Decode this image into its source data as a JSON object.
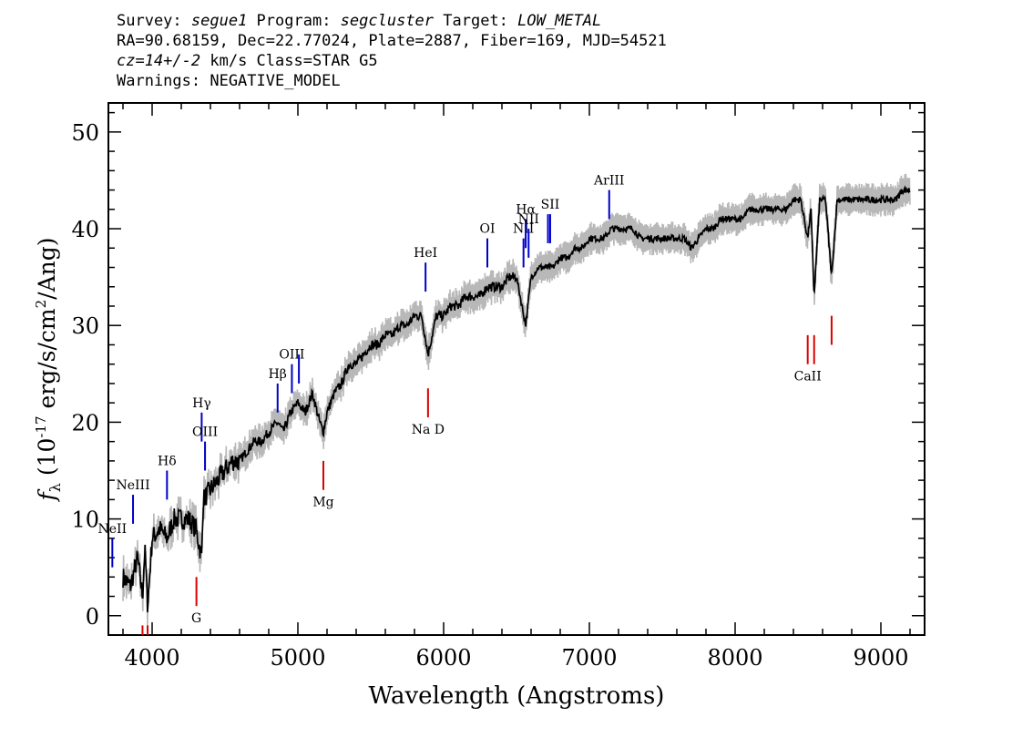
{
  "header": {
    "line1": {
      "survey_label": "Survey: ",
      "survey_value": "segue1",
      "program_label": " Program: ",
      "program_value": "segcluster",
      "target_label": " Target: ",
      "target_value": "LOW_METAL"
    },
    "line2": "RA=90.68159, Dec=22.77024, Plate=2887, Fiber=169, MJD=54521",
    "line3": {
      "cz": "cz=14+/-2",
      "rest": " km/s Class=STAR G5"
    },
    "line4": "Warnings: NEGATIVE_MODEL"
  },
  "chart_data": {
    "type": "line",
    "xlabel": "Wavelength (Angstroms)",
    "ylabel_symbol": "f",
    "ylabel_sub": "λ",
    "ylabel_text": " (10",
    "ylabel_exp": "-17",
    "ylabel_units": " erg/s/cm",
    "ylabel_exp2": "2",
    "ylabel_end": "/Ang)",
    "xlim": [
      3700,
      9300
    ],
    "ylim": [
      -2,
      53
    ],
    "xticks": [
      4000,
      5000,
      6000,
      7000,
      8000,
      9000
    ],
    "yticks": [
      0,
      10,
      20,
      30,
      40,
      50
    ],
    "series": [
      {
        "role": "flux",
        "color": "#000000",
        "x": [
          3800,
          3850,
          3900,
          3934,
          3950,
          3969,
          4000,
          4050,
          4102,
          4150,
          4200,
          4250,
          4300,
          4340,
          4350,
          4400,
          4450,
          4500,
          4550,
          4600,
          4650,
          4700,
          4750,
          4800,
          4861,
          4900,
          4950,
          5000,
          5050,
          5100,
          5150,
          5175,
          5200,
          5250,
          5300,
          5350,
          5400,
          5450,
          5500,
          5550,
          5600,
          5650,
          5700,
          5750,
          5800,
          5850,
          5893,
          5950,
          6000,
          6050,
          6100,
          6150,
          6200,
          6250,
          6300,
          6350,
          6400,
          6450,
          6500,
          6563,
          6600,
          6650,
          6700,
          6750,
          6800,
          6850,
          6900,
          6950,
          7000,
          7050,
          7100,
          7150,
          7200,
          7250,
          7300,
          7350,
          7400,
          7450,
          7500,
          7550,
          7600,
          7650,
          7700,
          7750,
          7800,
          7850,
          7900,
          7950,
          8000,
          8050,
          8100,
          8150,
          8200,
          8250,
          8300,
          8350,
          8400,
          8450,
          8498,
          8520,
          8542,
          8580,
          8620,
          8662,
          8700,
          8750,
          8800,
          8850,
          8900,
          8950,
          9000,
          9050,
          9100,
          9150,
          9200
        ],
        "y": [
          4,
          3,
          6,
          2,
          7,
          1,
          8,
          9,
          8,
          10,
          10,
          10,
          9,
          6,
          12,
          13,
          14,
          15,
          16,
          16,
          17,
          18,
          18,
          19,
          20,
          19,
          21,
          22,
          21,
          23,
          20,
          19,
          21,
          23,
          24,
          26,
          26,
          27,
          28,
          28,
          29,
          29,
          30,
          30,
          31,
          31,
          27,
          31,
          31,
          32,
          32,
          33,
          33,
          33,
          34,
          34,
          34,
          35,
          35,
          30,
          35,
          36,
          36,
          36,
          37,
          37,
          38,
          38,
          39,
          39,
          39,
          40,
          40,
          40,
          40,
          39,
          39,
          39,
          39,
          39,
          39,
          39,
          38,
          39,
          40,
          40,
          41,
          41,
          41,
          41,
          42,
          42,
          42,
          42,
          42,
          42,
          43,
          43,
          39,
          42,
          33,
          43,
          43,
          35,
          43,
          43,
          43,
          43,
          43,
          43,
          43,
          43,
          43,
          44,
          44
        ]
      }
    ],
    "emission_lines": [
      {
        "label": "NeII",
        "x": 3727,
        "y1": 5.0,
        "y2": 8.0,
        "color": "#0000c8"
      },
      {
        "label": "NeIII",
        "x": 3869,
        "y1": 9.5,
        "y2": 12.5,
        "color": "#0000c8"
      },
      {
        "label": "Hδ",
        "x": 4102,
        "y1": 12.0,
        "y2": 15.0,
        "color": "#0000c8"
      },
      {
        "label": "Hγ",
        "x": 4340,
        "y1": 18.0,
        "y2": 21.0,
        "color": "#0000c8"
      },
      {
        "label": "OIII",
        "x": 4363,
        "y1": 15.0,
        "y2": 18.0,
        "color": "#0000c8"
      },
      {
        "label": "Hβ",
        "x": 4861,
        "y1": 21.0,
        "y2": 24.0,
        "color": "#0000c8"
      },
      {
        "label": "OIII",
        "x": 4959,
        "y1": 23.0,
        "y2": 26.0,
        "color": "#0000c8"
      },
      {
        "label": "",
        "x": 5007,
        "y1": 24.0,
        "y2": 27.0,
        "color": "#0000c8"
      },
      {
        "label": "HeI",
        "x": 5876,
        "y1": 33.5,
        "y2": 36.5,
        "color": "#0000c8"
      },
      {
        "label": "OI",
        "x": 6300,
        "y1": 36.0,
        "y2": 39.0,
        "color": "#0000c8"
      },
      {
        "label": "NII",
        "x": 6548,
        "y1": 36.0,
        "y2": 39.0,
        "color": "#0000c8"
      },
      {
        "label": "Hα",
        "x": 6563,
        "y1": 38.0,
        "y2": 41.0,
        "color": "#0000c8"
      },
      {
        "label": "NII",
        "x": 6583,
        "y1": 37.0,
        "y2": 40.0,
        "color": "#0000c8"
      },
      {
        "label": "",
        "x": 6716,
        "y1": 38.5,
        "y2": 41.5,
        "color": "#0000c8"
      },
      {
        "label": "SII",
        "x": 6731,
        "y1": 38.5,
        "y2": 41.5,
        "color": "#0000c8"
      },
      {
        "label": "ArIII",
        "x": 7136,
        "y1": 41.0,
        "y2": 44.0,
        "color": "#0000c8"
      }
    ],
    "absorption_lines": [
      {
        "label": "",
        "x": 3934,
        "y1": -2.0,
        "y2": -1.0,
        "color": "#dc0000"
      },
      {
        "label": "",
        "x": 3969,
        "y1": -2.0,
        "y2": -1.0,
        "color": "#dc0000"
      },
      {
        "label": "G",
        "x": 4304,
        "y1": 1.0,
        "y2": 4.0,
        "color": "#dc0000"
      },
      {
        "label": "Mg",
        "x": 5175,
        "y1": 13.0,
        "y2": 16.0,
        "color": "#dc0000"
      },
      {
        "label": "Na D",
        "x": 5893,
        "y1": 20.5,
        "y2": 23.5,
        "color": "#dc0000"
      },
      {
        "label": "CaII",
        "x": 8498,
        "y1": 26.0,
        "y2": 29.0,
        "color": "#dc0000"
      },
      {
        "label": "",
        "x": 8542,
        "y1": 26.0,
        "y2": 29.0,
        "color": "#dc0000"
      },
      {
        "label": "",
        "x": 8662,
        "y1": 28.0,
        "y2": 31.0,
        "color": "#dc0000"
      }
    ],
    "colors": {
      "noise": "#b8b8b8",
      "flux": "#000000",
      "emission": "#0000c8",
      "absorption": "#dc0000"
    }
  }
}
